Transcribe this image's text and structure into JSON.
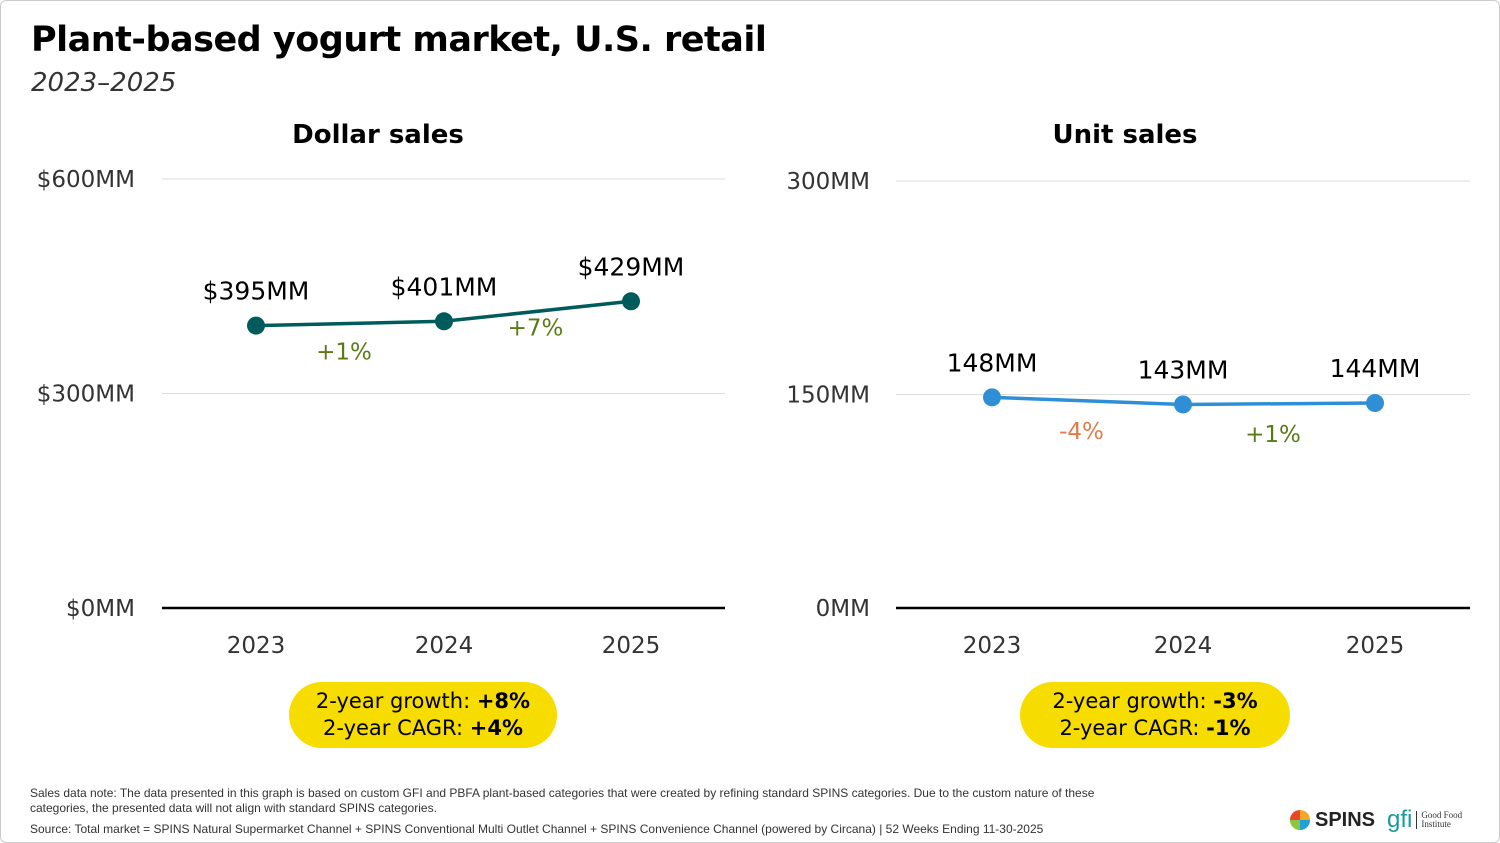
{
  "header": {
    "title": "Plant-based yogurt market, U.S. retail",
    "subtitle": "2023–2025"
  },
  "colors": {
    "dollar_line": "#005b5c",
    "unit_line": "#2f8fd6",
    "positive": "#5b7a17",
    "negative": "#e07b4a",
    "highlight": "#f7dc00",
    "axis": "#000",
    "grid": "#ddd"
  },
  "chart_data": [
    {
      "type": "line",
      "title": "Dollar sales",
      "categories": [
        "2023",
        "2024",
        "2025"
      ],
      "values": [
        395,
        401,
        429
      ],
      "data_labels": [
        "$395MM",
        "$401MM",
        "$429MM"
      ],
      "ylim": [
        0,
        600
      ],
      "yticks": [
        0,
        300,
        600
      ],
      "ytick_labels": [
        "$0MM",
        "$300MM",
        "$600MM"
      ],
      "grid": true,
      "growth_labels": [
        "+1%",
        "+7%"
      ],
      "summary": {
        "growth_label": "2-year growth: ",
        "growth_value": "+8%",
        "cagr_label": "2-year CAGR: ",
        "cagr_value": "+4%"
      }
    },
    {
      "type": "line",
      "title": "Unit sales",
      "categories": [
        "2023",
        "2024",
        "2025"
      ],
      "values": [
        148,
        143,
        144
      ],
      "data_labels": [
        "148MM",
        "143MM",
        "144MM"
      ],
      "ylim": [
        0,
        300
      ],
      "yticks": [
        0,
        150,
        300
      ],
      "ytick_labels": [
        "0MM",
        "150MM",
        "300MM"
      ],
      "grid": true,
      "growth_labels": [
        "-4%",
        "+1%"
      ],
      "summary": {
        "growth_label": "2-year growth: ",
        "growth_value": "-3%",
        "cagr_label": "2-year CAGR: ",
        "cagr_value": "-1%"
      }
    }
  ],
  "footer": {
    "note": "Sales data note: The data presented in this graph is based on custom GFI and PBFA plant-based categories that were created by refining standard SPINS categories. Due to the custom nature of these categories, the presented data will not align with standard SPINS categories.",
    "source": "Source: Total market = SPINS Natural Supermarket Channel + SPINS Conventional Multi Outlet Channel + SPINS Convenience Channel (powered by Circana) | 52 Weeks Ending 11-30-2025"
  },
  "logos": {
    "spins": "SPINS",
    "gfi": "gfi",
    "gfi_name_1": "Good Food",
    "gfi_name_2": "Institute"
  }
}
